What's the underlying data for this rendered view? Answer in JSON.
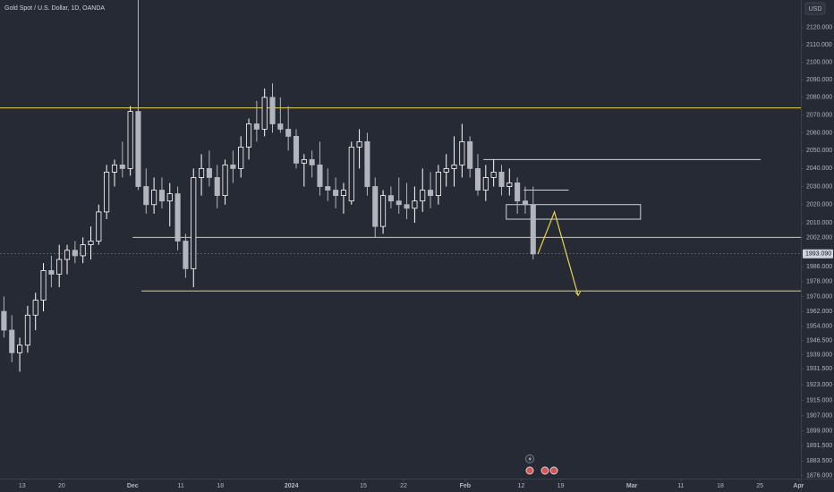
{
  "chart_data": {
    "type": "candlestick",
    "title": "Gold Spot / U.S. Dollar, 1D, OANDA",
    "currency": "USD",
    "log": true,
    "up_color": "#ffffff",
    "down_color": "#b2b5be",
    "x": [
      0,
      1,
      2,
      3,
      4,
      5,
      6,
      7,
      8,
      9,
      10,
      11,
      12,
      13,
      14,
      15,
      16,
      17,
      18,
      19,
      20,
      21,
      22,
      23,
      24,
      25,
      26,
      27,
      28,
      29,
      30,
      31,
      32,
      33,
      34,
      35,
      36,
      37,
      38,
      39,
      40,
      41,
      42,
      43,
      44,
      45,
      46,
      47,
      48,
      49,
      50,
      51,
      52,
      53,
      54,
      55,
      56,
      57,
      58,
      59,
      60,
      61,
      62,
      63,
      64,
      65,
      66,
      67
    ],
    "open": [
      1962,
      1952,
      1940,
      1944,
      1960,
      1968,
      1984,
      1982,
      1990,
      1995,
      1992,
      1998,
      2000,
      2016,
      2038,
      2042,
      2040,
      2072,
      2030,
      2020,
      2028,
      2022,
      2026,
      2000,
      1985,
      2035,
      2040,
      2035,
      2025,
      2042,
      2040,
      2052,
      2065,
      2062,
      2080,
      2065,
      2062,
      2058,
      2043,
      2045,
      2042,
      2030,
      2028,
      2025,
      2022,
      2052,
      2055,
      2030,
      2008,
      2025,
      2022,
      2020,
      2018,
      2022,
      2028,
      2025,
      2038,
      2040,
      2042,
      2055,
      2040,
      2028,
      2035,
      2038,
      2030,
      2032,
      2022,
      2020
    ],
    "high": [
      1970,
      1960,
      1948,
      1965,
      1972,
      1988,
      1992,
      1998,
      1998,
      2000,
      2002,
      2008,
      2020,
      2042,
      2045,
      2055,
      2075,
      2146,
      2040,
      2035,
      2035,
      2032,
      2030,
      2004,
      2040,
      2048,
      2050,
      2042,
      2045,
      2050,
      2058,
      2068,
      2078,
      2085,
      2088,
      2080,
      2075,
      2062,
      2048,
      2050,
      2055,
      2040,
      2035,
      2032,
      2055,
      2062,
      2060,
      2035,
      2028,
      2030,
      2035,
      2032,
      2030,
      2040,
      2038,
      2042,
      2048,
      2058,
      2065,
      2058,
      2048,
      2042,
      2045,
      2042,
      2040,
      2035,
      2030,
      2030
    ],
    "low": [
      1948,
      1935,
      1930,
      1940,
      1952,
      1962,
      1975,
      1975,
      1982,
      1988,
      1988,
      1990,
      1998,
      2012,
      2030,
      2035,
      2036,
      2028,
      2015,
      2015,
      2018,
      2008,
      1995,
      1980,
      1975,
      2025,
      2030,
      2018,
      2020,
      2032,
      2035,
      2045,
      2055,
      2058,
      2060,
      2060,
      2050,
      2040,
      2030,
      2035,
      2025,
      2022,
      2018,
      2015,
      2020,
      2040,
      2025,
      2002,
      2004,
      2018,
      2015,
      2012,
      2010,
      2016,
      2018,
      2020,
      2030,
      2030,
      2035,
      2035,
      2025,
      2022,
      2030,
      2025,
      2025,
      2015,
      2015,
      1990
    ],
    "close": [
      1952,
      1940,
      1944,
      1960,
      1968,
      1984,
      1982,
      1990,
      1995,
      1992,
      1998,
      2000,
      2016,
      2038,
      2042,
      2040,
      2072,
      2030,
      2020,
      2028,
      2022,
      2026,
      2000,
      1985,
      2035,
      2040,
      2035,
      2025,
      2042,
      2040,
      2052,
      2065,
      2062,
      2080,
      2065,
      2062,
      2058,
      2043,
      2045,
      2042,
      2030,
      2028,
      2025,
      2028,
      2052,
      2055,
      2030,
      2008,
      2025,
      2022,
      2020,
      2018,
      2022,
      2028,
      2025,
      2038,
      2040,
      2042,
      2055,
      2040,
      2028,
      2035,
      2038,
      2030,
      2032,
      2022,
      2020,
      1993
    ],
    "xlim": [
      -0.5,
      100.9
    ],
    "xticks": [
      {
        "value": 2.3,
        "label": "13"
      },
      {
        "value": 7.3,
        "label": "20"
      },
      {
        "value": 16.3,
        "label": "Dec"
      },
      {
        "value": 22.4,
        "label": "11"
      },
      {
        "value": 27.4,
        "label": "18"
      },
      {
        "value": 36.4,
        "label": "2024"
      },
      {
        "value": 45.5,
        "label": "15"
      },
      {
        "value": 50.6,
        "label": "22"
      },
      {
        "value": 58.4,
        "label": "Feb"
      },
      {
        "value": 65.5,
        "label": "12"
      },
      {
        "value": 70.5,
        "label": "19"
      },
      {
        "value": 79.5,
        "label": "Mar"
      },
      {
        "value": 85.7,
        "label": "11"
      },
      {
        "value": 90.7,
        "label": "18"
      },
      {
        "value": 95.7,
        "label": "25"
      },
      {
        "value": 100.6,
        "label": "Apr"
      }
    ],
    "ylim": [
      1874.5,
      2136
    ],
    "yticks": [
      {
        "value": 2120,
        "label": "2120.000"
      },
      {
        "value": 2110,
        "label": "2110.000"
      },
      {
        "value": 2100,
        "label": "2100.000"
      },
      {
        "value": 2090,
        "label": "2090.000"
      },
      {
        "value": 2080,
        "label": "2080.000"
      },
      {
        "value": 2070,
        "label": "2070.000"
      },
      {
        "value": 2060,
        "label": "2060.000"
      },
      {
        "value": 2050,
        "label": "2050.000"
      },
      {
        "value": 2040,
        "label": "2040.000"
      },
      {
        "value": 2030,
        "label": "2030.000"
      },
      {
        "value": 2020,
        "label": "2020.000"
      },
      {
        "value": 2010,
        "label": "2010.000"
      },
      {
        "value": 2002,
        "label": "2002.000"
      },
      {
        "value": 1986,
        "label": "1986.000"
      },
      {
        "value": 1978,
        "label": "1978.000"
      },
      {
        "value": 1970,
        "label": "1970.000"
      },
      {
        "value": 1962,
        "label": "1962.000"
      },
      {
        "value": 1954,
        "label": "1954.000"
      },
      {
        "value": 1946.5,
        "label": "1946.500"
      },
      {
        "value": 1939,
        "label": "1939.000"
      },
      {
        "value": 1931.5,
        "label": "1931.500"
      },
      {
        "value": 1923,
        "label": "1923.000"
      },
      {
        "value": 1915,
        "label": "1915.000"
      },
      {
        "value": 1907,
        "label": "1907.000"
      },
      {
        "value": 1899,
        "label": "1899.000"
      },
      {
        "value": 1891.5,
        "label": "1891.500"
      },
      {
        "value": 1883.5,
        "label": "1883.500"
      },
      {
        "value": 1876,
        "label": "1876.000"
      }
    ],
    "last": {
      "value": 1993.09,
      "label": "1993.090"
    },
    "lines": [
      {
        "value": 2074,
        "from": -0.5,
        "to": 100.9,
        "color": "#e8d44d"
      },
      {
        "value": 2002,
        "from": 16.3,
        "to": 100.9,
        "color": "#e8d44d"
      },
      {
        "value": 1973,
        "from": 17.4,
        "to": 100.9,
        "color": "#e8d44d"
      },
      {
        "value": 2045,
        "from": 60.7,
        "to": 95.8,
        "color": "#d1d4dc"
      },
      {
        "value": 2028,
        "from": 65.8,
        "to": 71.5,
        "color": "#d1d4dc"
      }
    ],
    "box": {
      "top": 2020,
      "bottom": 2012,
      "from": 63.6,
      "to": 80.6,
      "color": "#d1d4dc"
    },
    "path": {
      "x": [
        67.6,
        69.7,
        72.7
      ],
      "y": [
        1993,
        2016,
        1970.5
      ],
      "color": "#e8d44d"
    }
  }
}
